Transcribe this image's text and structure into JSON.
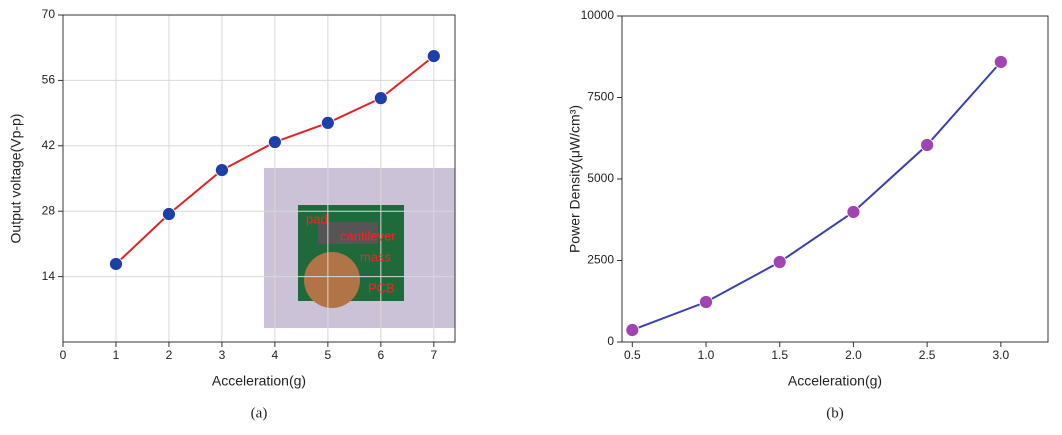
{
  "chart_data": [
    {
      "type": "line",
      "x": [
        1,
        2,
        3,
        4,
        5,
        6,
        7
      ],
      "series": [
        {
          "values": [
            16.7,
            27.4,
            36.8,
            42.8,
            46.9,
            52.2,
            61.2
          ],
          "color": "#e02424",
          "marker_color": "#1c3fa8"
        }
      ],
      "xlim": [
        0,
        7.4
      ],
      "ylim": [
        0,
        70
      ],
      "xticks": [
        0,
        1,
        2,
        3,
        4,
        5,
        6,
        7
      ],
      "yticks": [
        14,
        28,
        42,
        56,
        70
      ],
      "grid": true,
      "xlabel": "Acceleration(g)",
      "ylabel": "Output voltage(Vp-p)",
      "caption": "(a)",
      "annotations": [
        "pad",
        "cantilever",
        "mass",
        "PCB"
      ]
    },
    {
      "type": "line",
      "x": [
        0.5,
        1.0,
        1.5,
        2.0,
        2.5,
        3.0
      ],
      "series": [
        {
          "values": [
            368,
            1227,
            2454,
            3988,
            6043,
            8589
          ],
          "color": "#3b3fb0",
          "marker_color": "#a044b4"
        }
      ],
      "xlim": [
        0.43,
        3.32
      ],
      "ylim": [
        0,
        10000
      ],
      "xticks": [
        {
          "value": 0.5,
          "label": "0.5"
        },
        {
          "value": 1.0,
          "label": "1.0"
        },
        {
          "value": 1.5,
          "label": "1.5"
        },
        {
          "value": 2.0,
          "label": "2.0"
        },
        {
          "value": 2.5,
          "label": "2.5"
        },
        {
          "value": 3.0,
          "label": "3.0"
        }
      ],
      "yticks": [
        0,
        2500,
        5000,
        7500,
        10000
      ],
      "grid": false,
      "xlabel": "Acceleration(g)",
      "ylabel": "Power Density(μW/cm³)",
      "caption": "(b)"
    }
  ]
}
